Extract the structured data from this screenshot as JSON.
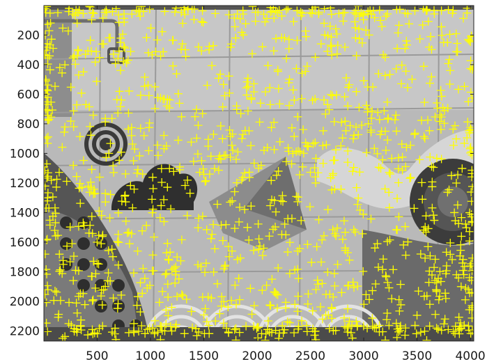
{
  "chart_data": {
    "type": "scatter",
    "title": "",
    "xlabel": "",
    "ylabel": "",
    "xlim": [
      1,
      4032
    ],
    "ylim": [
      2268,
      1
    ],
    "y_axis_reversed": true,
    "grid": false,
    "legend": "none",
    "background": "grayscale photograph of a painted tiled mural wall (targets, cloud, paper boat, dotted discs, scalloped arcs)",
    "marker": {
      "shape": "plus",
      "color": "#ffff00",
      "count_shown": "dense (~1100 markers)"
    },
    "x_ticks": [
      500,
      1000,
      1500,
      2000,
      2500,
      3000,
      3500,
      4000
    ],
    "y_ticks": [
      200,
      400,
      600,
      800,
      1000,
      1200,
      1400,
      1600,
      1800,
      2000,
      2200
    ],
    "x_tick_labels": [
      "500",
      "1000",
      "1500",
      "2000",
      "2500",
      "3000",
      "3500",
      "4000"
    ],
    "y_tick_labels": [
      "200",
      "400",
      "600",
      "800",
      "1000",
      "1200",
      "1400",
      "1600",
      "1800",
      "2000",
      "2200"
    ],
    "series": [
      {
        "values_sample": [
          [
            150,
            420
          ],
          [
            320,
            300
          ],
          [
            560,
            260
          ],
          [
            720,
            250
          ],
          [
            980,
            320
          ],
          [
            1300,
            260
          ],
          [
            1550,
            300
          ],
          [
            1800,
            220
          ],
          [
            2050,
            280
          ],
          [
            2300,
            230
          ],
          [
            2600,
            260
          ],
          [
            3050,
            200
          ],
          [
            3400,
            240
          ],
          [
            3750,
            250
          ],
          [
            3980,
            230
          ],
          [
            280,
            820
          ],
          [
            610,
            1000
          ],
          [
            940,
            880
          ],
          [
            1150,
            950
          ],
          [
            1480,
            1050
          ],
          [
            1820,
            990
          ],
          [
            2200,
            1120
          ],
          [
            2550,
            1200
          ],
          [
            2850,
            1060
          ],
          [
            3200,
            1240
          ],
          [
            3550,
            1310
          ],
          [
            3850,
            1400
          ],
          [
            500,
            1600
          ],
          [
            880,
            1660
          ],
          [
            1250,
            1700
          ],
          [
            1690,
            1780
          ],
          [
            2140,
            1850
          ],
          [
            2480,
            1950
          ],
          [
            2850,
            2050
          ],
          [
            3220,
            2080
          ],
          [
            3620,
            2020
          ],
          [
            3980,
            1920
          ],
          [
            460,
            2220
          ],
          [
            1200,
            2200
          ],
          [
            2100,
            2190
          ],
          [
            3100,
            2180
          ],
          [
            3900,
            2170
          ]
        ]
      }
    ]
  }
}
